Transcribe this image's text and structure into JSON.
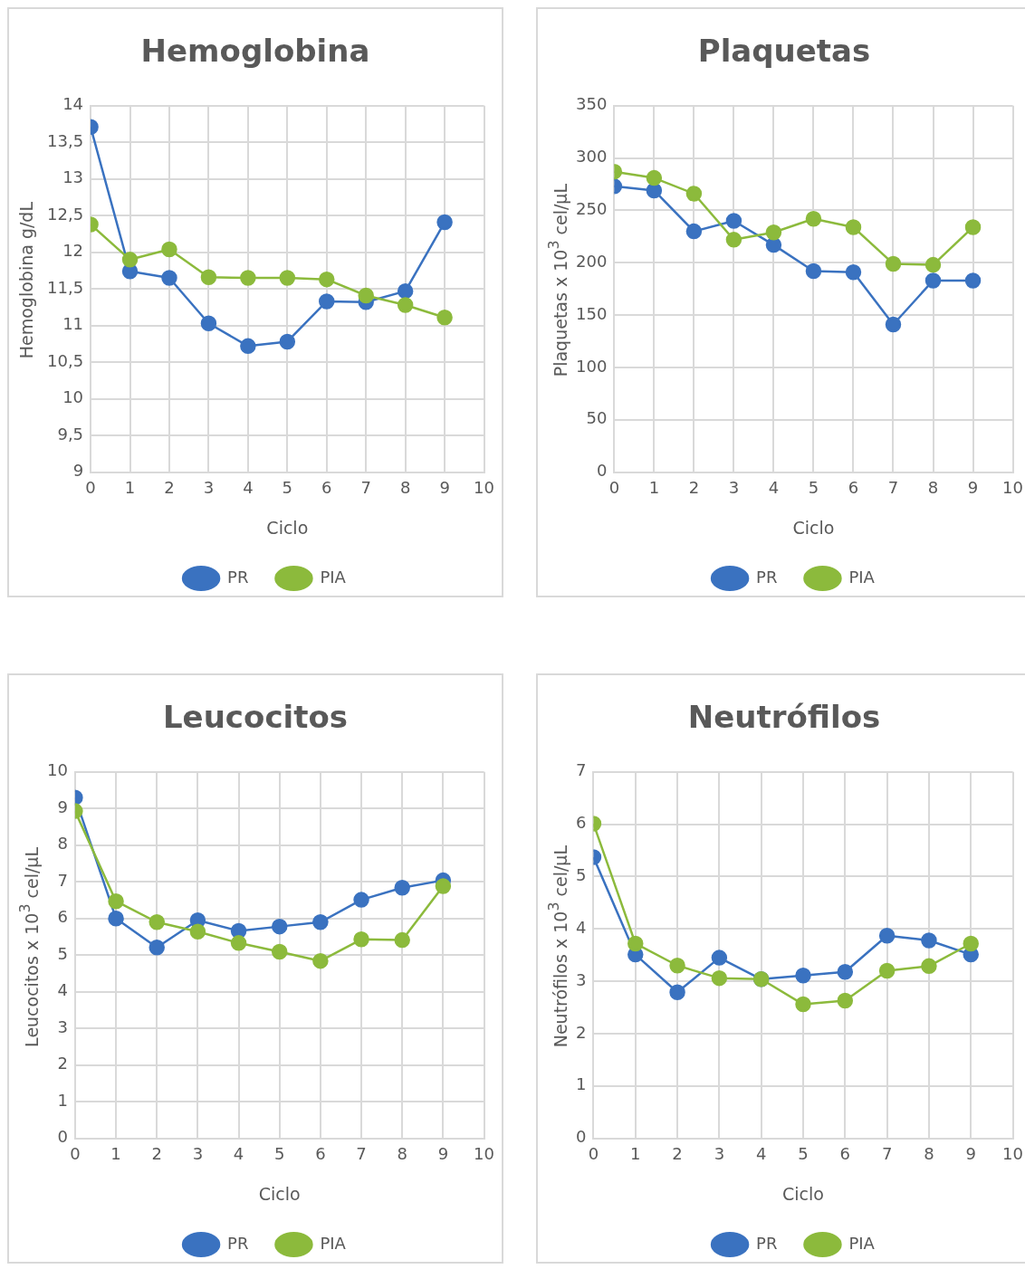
{
  "chart_data": [
    {
      "type": "line",
      "title": "Hemoglobina",
      "xlabel": "Ciclo",
      "ylabel": "Hemoglobina g/dL",
      "x": [
        0,
        1,
        2,
        3,
        4,
        5,
        6,
        7,
        8,
        9
      ],
      "xlim": [
        0,
        10
      ],
      "xticks": [
        0,
        1,
        2,
        3,
        4,
        5,
        6,
        7,
        8,
        9,
        10
      ],
      "ylim": [
        9,
        14
      ],
      "yticks": [
        9,
        {
          "value": 9.5,
          "label": "9,5"
        },
        10,
        {
          "value": 10.5,
          "label": "10,5"
        },
        11,
        {
          "value": 11.5,
          "label": "11,5"
        },
        12,
        {
          "value": 12.5,
          "label": "12,5"
        },
        13,
        {
          "value": 13.5,
          "label": "13,5"
        },
        14
      ],
      "grid": true,
      "legend": "bottom",
      "marker": "circle",
      "series": [
        {
          "name": "PR",
          "color": "#3a72c0",
          "values": [
            13.71,
            11.74,
            11.65,
            11.03,
            10.72,
            10.78,
            11.33,
            11.32,
            11.47,
            12.41
          ]
        },
        {
          "name": "PIA",
          "color": "#8cba3c",
          "values": [
            12.38,
            11.9,
            12.04,
            11.66,
            11.65,
            11.65,
            11.63,
            11.41,
            11.28,
            11.11
          ]
        }
      ]
    },
    {
      "type": "line",
      "title": "Plaquetas",
      "xlabel": "Ciclo",
      "ylabel": "Plaquetas x 10$^{3}$ cel/µL",
      "x": [
        0,
        1,
        2,
        3,
        4,
        5,
        6,
        7,
        8,
        9
      ],
      "xlim": [
        0,
        10
      ],
      "xticks": [
        0,
        1,
        2,
        3,
        4,
        5,
        6,
        7,
        8,
        9,
        10
      ],
      "ylim": [
        0,
        350
      ],
      "yticks": [
        0,
        50,
        100,
        150,
        200,
        250,
        300,
        350
      ],
      "grid": true,
      "legend": "bottom",
      "marker": "circle",
      "series": [
        {
          "name": "PR",
          "color": "#3a72c0",
          "values": [
            273,
            269,
            230,
            240,
            217,
            192,
            191,
            141,
            183,
            183
          ]
        },
        {
          "name": "PIA",
          "color": "#8cba3c",
          "values": [
            287,
            281,
            266,
            222,
            229,
            242,
            234,
            199,
            198,
            234
          ]
        }
      ]
    },
    {
      "type": "line",
      "title": "Leucocitos",
      "xlabel": "Ciclo",
      "ylabel": "Leucocitos x 10$^{3}$ cel/µL",
      "x": [
        0,
        1,
        2,
        3,
        4,
        5,
        6,
        7,
        8,
        9
      ],
      "xlim": [
        0,
        10
      ],
      "xticks": [
        0,
        1,
        2,
        3,
        4,
        5,
        6,
        7,
        8,
        9,
        10
      ],
      "ylim": [
        0,
        10
      ],
      "yticks": [
        0,
        1,
        2,
        3,
        4,
        5,
        6,
        7,
        8,
        9,
        10
      ],
      "grid": true,
      "legend": "bottom",
      "marker": "circle",
      "series": [
        {
          "name": "PR",
          "color": "#3a72c0",
          "values": [
            9.3,
            6.0,
            5.21,
            5.95,
            5.66,
            5.78,
            5.9,
            6.51,
            6.84,
            7.04
          ]
        },
        {
          "name": "PIA",
          "color": "#8cba3c",
          "values": [
            8.93,
            6.47,
            5.9,
            5.64,
            5.33,
            5.09,
            4.84,
            5.43,
            5.41,
            6.88
          ]
        }
      ]
    },
    {
      "type": "line",
      "title": "Neutrófilos",
      "xlabel": "Ciclo",
      "ylabel": "Neutrófilos x 10$^{3}$ cel/µL",
      "x": [
        0,
        1,
        2,
        3,
        4,
        5,
        6,
        7,
        8,
        9
      ],
      "xlim": [
        0,
        10
      ],
      "xticks": [
        0,
        1,
        2,
        3,
        4,
        5,
        6,
        7,
        8,
        9,
        10
      ],
      "ylim": [
        0,
        7
      ],
      "yticks": [
        0,
        1,
        2,
        3,
        4,
        5,
        6,
        7
      ],
      "grid": true,
      "legend": "bottom",
      "marker": "circle",
      "series": [
        {
          "name": "PR",
          "color": "#3a72c0",
          "values": [
            5.37,
            3.51,
            2.79,
            3.45,
            3.04,
            3.11,
            3.18,
            3.87,
            3.78,
            3.51
          ]
        },
        {
          "name": "PIA",
          "color": "#8cba3c",
          "values": [
            6.01,
            3.72,
            3.3,
            3.06,
            3.04,
            2.56,
            2.63,
            3.2,
            3.29,
            3.72
          ]
        }
      ]
    }
  ]
}
